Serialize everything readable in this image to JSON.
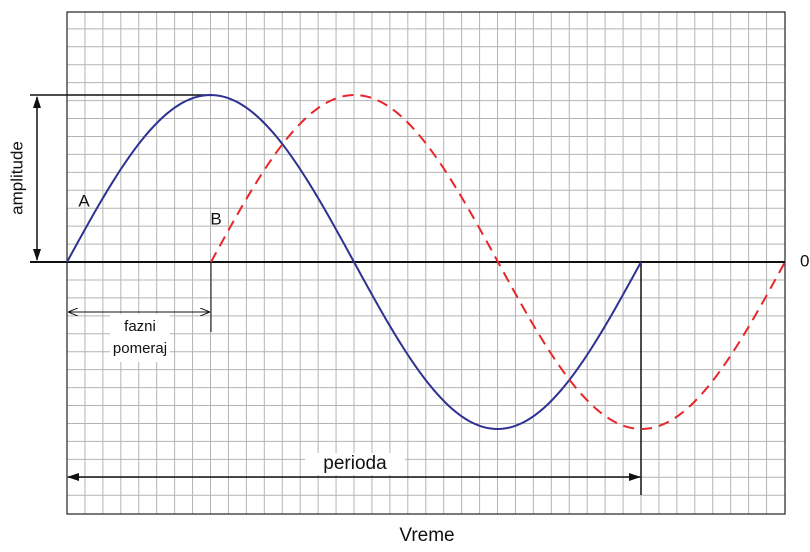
{
  "axis_label": "Vreme",
  "zero_label": "0",
  "waves": [
    {
      "label": "A"
    },
    {
      "label": "B"
    }
  ],
  "annotations": {
    "amplitude": "amplitude",
    "phase_shift": [
      "fazni",
      "pomeraj"
    ],
    "period": "perioda"
  }
}
